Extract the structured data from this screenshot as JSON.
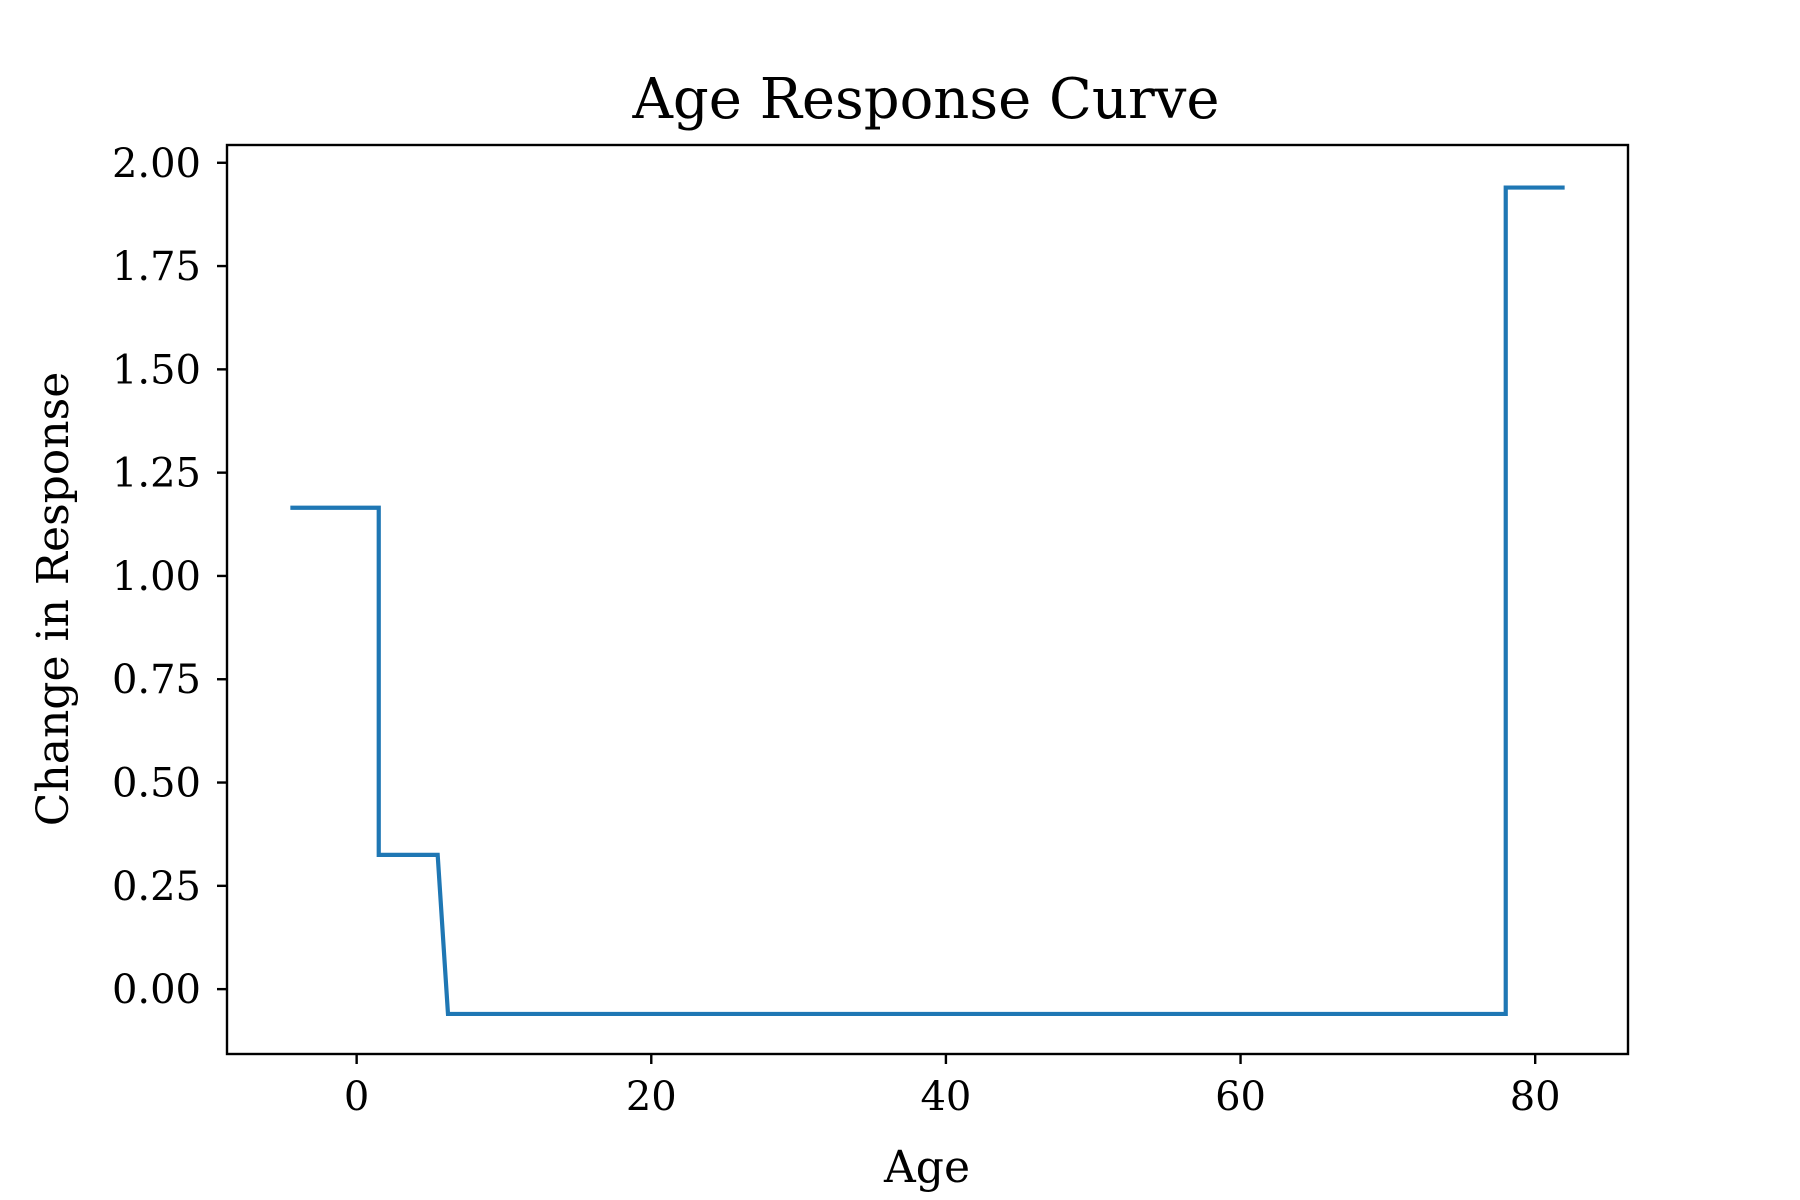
{
  "chart_data": {
    "type": "line",
    "title": "Age Response Curve",
    "xlabel": "Age",
    "ylabel": "Change in Response",
    "xlim": [
      -8.8,
      86.3
    ],
    "ylim": [
      -0.157,
      2.043
    ],
    "x_ticks": [
      0,
      20,
      40,
      60,
      80
    ],
    "x_tick_labels": [
      "0",
      "20",
      "40",
      "60",
      "80"
    ],
    "y_ticks": [
      0.0,
      0.25,
      0.5,
      0.75,
      1.0,
      1.25,
      1.5,
      1.75,
      2.0
    ],
    "y_tick_labels": [
      "0.00",
      "0.25",
      "0.50",
      "0.75",
      "1.00",
      "1.25",
      "1.50",
      "1.75",
      "2.00"
    ],
    "grid": false,
    "legend": false,
    "series": [
      {
        "color": "#1f77b4",
        "x": [
          -4.5,
          1.5,
          1.5,
          5.5,
          6.2,
          78.0,
          78.0,
          82.0
        ],
        "y": [
          1.165,
          1.165,
          0.325,
          0.325,
          -0.06,
          -0.06,
          1.94,
          1.94
        ]
      }
    ]
  }
}
